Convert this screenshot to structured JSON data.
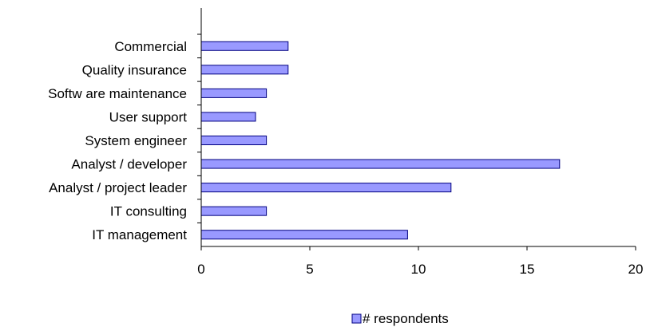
{
  "chart_data": {
    "type": "bar",
    "orientation": "horizontal",
    "categories": [
      "Commercial",
      "Quality insurance",
      "Softw are maintenance",
      "User support",
      "System engineer",
      "Analyst / developer",
      "Analyst / project leader",
      "IT consulting",
      "IT management"
    ],
    "series": [
      {
        "name": "# respondents",
        "values": [
          4,
          4,
          3,
          2.5,
          3,
          16.5,
          11.5,
          3,
          9.5
        ],
        "color": "#9999ff"
      }
    ],
    "xlim": [
      0,
      20
    ],
    "xticks": [
      0,
      5,
      10,
      15,
      20
    ],
    "grid": false,
    "legend_position": "bottom",
    "bar_border_color": "#000080"
  }
}
